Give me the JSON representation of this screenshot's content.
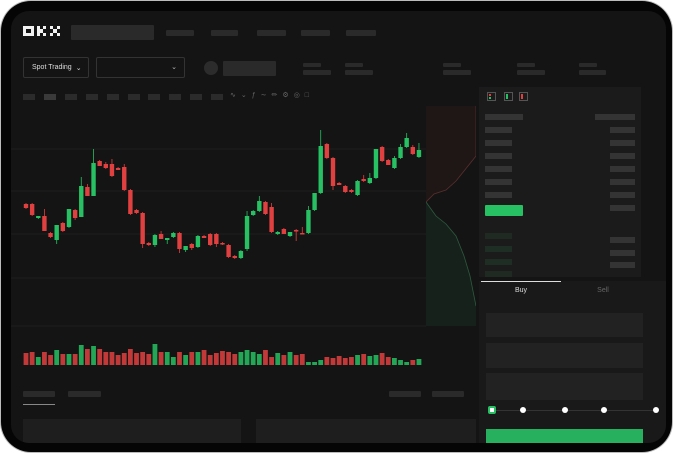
{
  "header": {
    "logo": "OKX"
  },
  "toolbar": {
    "market_dropdown": "Spot Trading",
    "pair_dropdown": ""
  },
  "trade_form": {
    "tabs": [
      "Buy",
      "Sell"
    ],
    "active_tab": "Buy",
    "slider_percent": 0
  },
  "colors": {
    "up": "#27c063",
    "down": "#e0403f",
    "background": "#141414",
    "panel": "#1b1b1b"
  },
  "icons": [
    "chevron-down-icon",
    "orderbook-both-icon",
    "orderbook-bids-icon",
    "orderbook-asks-icon",
    "pencil-icon",
    "settings-icon",
    "camera-icon"
  ],
  "chart_data": {
    "type": "candlestick",
    "candles": [
      [
        97,
        98,
        92,
        93
      ],
      [
        97,
        98,
        85,
        86
      ],
      [
        83,
        85,
        82,
        85
      ],
      [
        85,
        92,
        70,
        70
      ],
      [
        68,
        69,
        63,
        64
      ],
      [
        61,
        76,
        57,
        76
      ],
      [
        78,
        79,
        69,
        70
      ],
      [
        74,
        92,
        73,
        92
      ],
      [
        91,
        92,
        81,
        83
      ],
      [
        84,
        124,
        84,
        115
      ],
      [
        114,
        117,
        105,
        105
      ],
      [
        105,
        152,
        105,
        138
      ],
      [
        140,
        141,
        135,
        135
      ],
      [
        137,
        139,
        132,
        133
      ],
      [
        137,
        142,
        124,
        125
      ],
      [
        133,
        134,
        131,
        131
      ],
      [
        134,
        137,
        110,
        111
      ],
      [
        111,
        112,
        86,
        87
      ],
      [
        91,
        92,
        87,
        88
      ],
      [
        88,
        89,
        53,
        57
      ],
      [
        58,
        59,
        55,
        56
      ],
      [
        56,
        67,
        54,
        66
      ],
      [
        67,
        70,
        62,
        62
      ],
      [
        61,
        63,
        57,
        63
      ],
      [
        64,
        69,
        63,
        68
      ],
      [
        68,
        69,
        48,
        52
      ],
      [
        51,
        55,
        49,
        55
      ],
      [
        57,
        58,
        51,
        53
      ],
      [
        54,
        66,
        53,
        65
      ],
      [
        65,
        66,
        63,
        63
      ],
      [
        67,
        68,
        55,
        56
      ],
      [
        67,
        68,
        54,
        57
      ],
      [
        58,
        59,
        56,
        57
      ],
      [
        56,
        57,
        43,
        44
      ],
      [
        45,
        46,
        42,
        43
      ],
      [
        43,
        51,
        42,
        50
      ],
      [
        52,
        90,
        50,
        85
      ],
      [
        86,
        91,
        85,
        90
      ],
      [
        90,
        105,
        89,
        100
      ],
      [
        99,
        100,
        86,
        87
      ],
      [
        94,
        98,
        68,
        69
      ],
      [
        67,
        70,
        66,
        69
      ],
      [
        72,
        73,
        67,
        67
      ],
      [
        65,
        69,
        64,
        69
      ],
      [
        71,
        72,
        60,
        70
      ],
      [
        68,
        74,
        67,
        67
      ],
      [
        68,
        95,
        67,
        91
      ],
      [
        91,
        108,
        90,
        108
      ],
      [
        108,
        171,
        107,
        155
      ],
      [
        157,
        158,
        142,
        143
      ],
      [
        143,
        144,
        111,
        115
      ],
      [
        118,
        119,
        116,
        116
      ],
      [
        115,
        116,
        108,
        109
      ],
      [
        111,
        112,
        108,
        109
      ],
      [
        106,
        121,
        105,
        120
      ],
      [
        122,
        126,
        119,
        120
      ],
      [
        118,
        128,
        117,
        123
      ],
      [
        123,
        152,
        122,
        152
      ],
      [
        154,
        155,
        139,
        140
      ],
      [
        141,
        142,
        136,
        136
      ],
      [
        133,
        145,
        132,
        143
      ],
      [
        143,
        157,
        142,
        154
      ],
      [
        154,
        168,
        153,
        163
      ],
      [
        154,
        156,
        146,
        147
      ],
      [
        144,
        158,
        143,
        151
      ]
    ],
    "volumes": [
      12,
      13,
      8,
      13,
      10,
      15,
      11,
      11,
      11,
      20,
      16,
      19,
      16,
      13,
      13,
      10,
      12,
      16,
      12,
      13,
      11,
      21,
      13,
      13,
      8,
      13,
      10,
      13,
      13,
      15,
      10,
      12,
      14,
      13,
      11,
      13,
      15,
      13,
      11,
      15,
      8,
      12,
      10,
      13,
      10,
      11,
      3,
      3,
      5,
      8,
      7,
      9,
      7,
      8,
      10,
      11,
      9,
      10,
      12,
      8,
      7,
      5,
      3,
      5,
      6
    ],
    "grid": true
  }
}
